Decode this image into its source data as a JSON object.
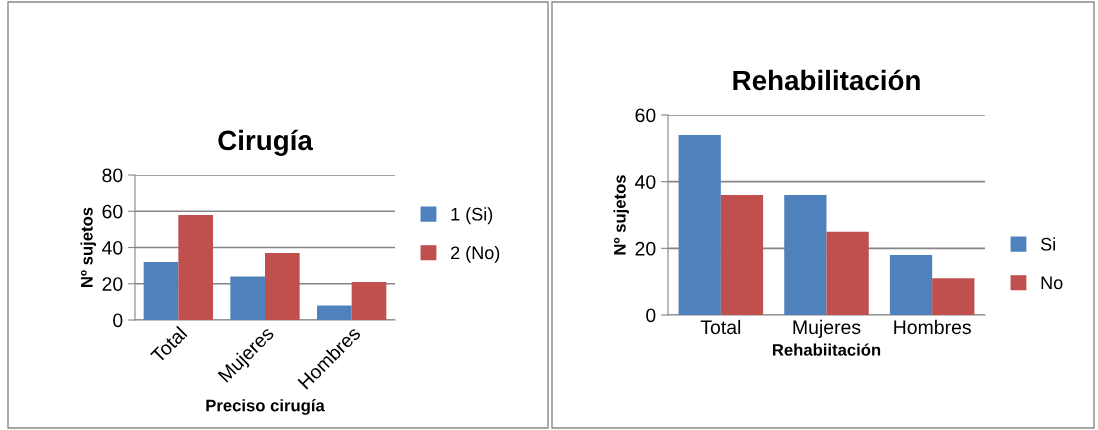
{
  "chart_data": [
    {
      "type": "bar",
      "title": "Cirugía",
      "xlabel": "Preciso cirugía",
      "ylabel": "Nº sujetos",
      "categories": [
        "Total",
        "Mujeres",
        "Hombres"
      ],
      "series": [
        {
          "name": "1 (Si)",
          "color": "#4f81bd",
          "values": [
            32,
            24,
            8
          ]
        },
        {
          "name": "2 (No)",
          "color": "#c0504d",
          "values": [
            58,
            37,
            21
          ]
        }
      ],
      "ylim": [
        0,
        80
      ],
      "yticks": [
        0,
        20,
        40,
        60,
        80
      ],
      "grid": "y",
      "legend": "right"
    },
    {
      "type": "bar",
      "title": "Rehabilitación",
      "xlabel": "Rehabiitación",
      "ylabel": "Nº sujetos",
      "categories": [
        "Total",
        "Mujeres",
        "Hombres"
      ],
      "series": [
        {
          "name": "Si",
          "color": "#4f81bd",
          "values": [
            54,
            36,
            18
          ]
        },
        {
          "name": "No",
          "color": "#c0504d",
          "values": [
            36,
            25,
            11
          ]
        }
      ],
      "ylim": [
        0,
        60
      ],
      "yticks": [
        0,
        20,
        40,
        60
      ],
      "grid": "y",
      "legend": "right"
    }
  ]
}
